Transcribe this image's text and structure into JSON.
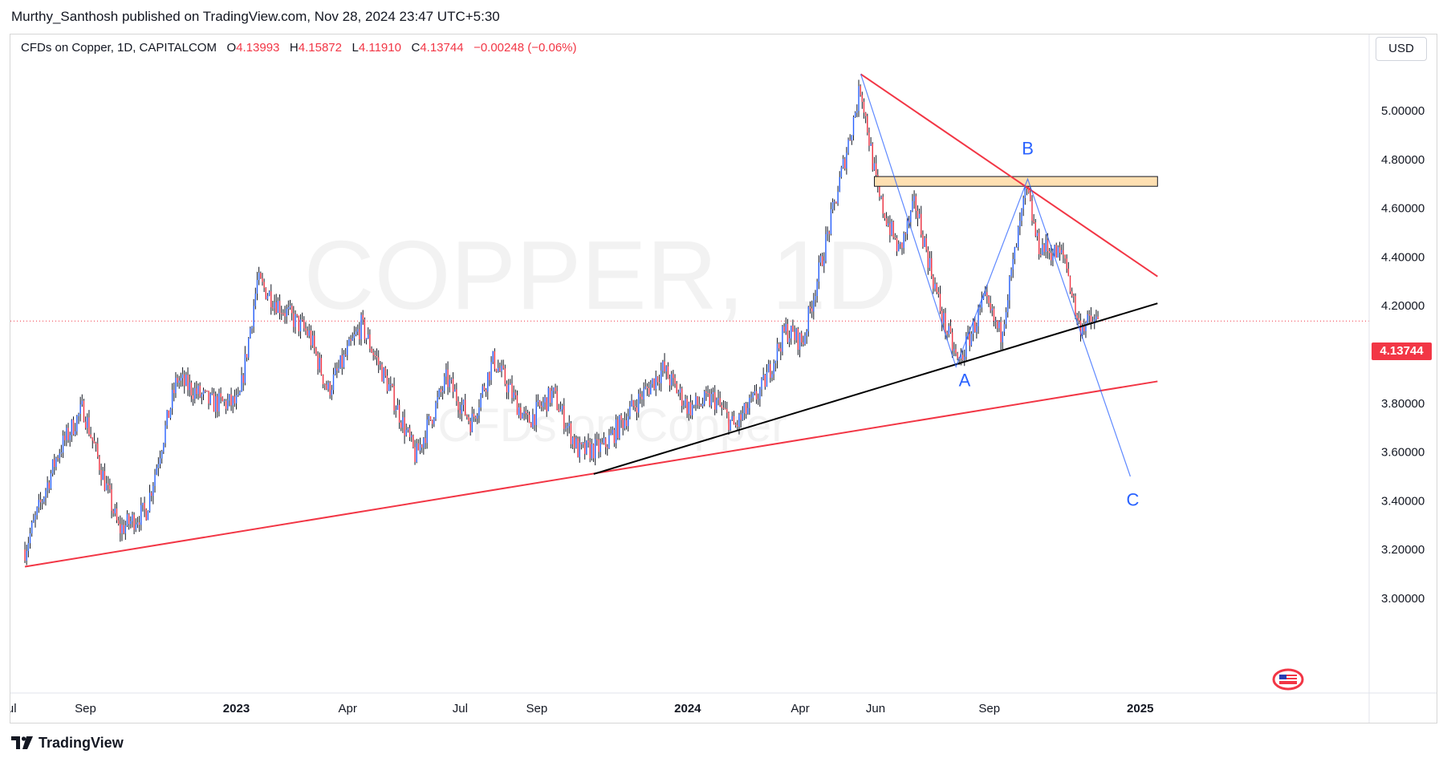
{
  "header": {
    "publish_line": "Murthy_Santhosh published on TradingView.com, Nov 28, 2024 23:47 UTC+5:30"
  },
  "legend": {
    "symbol": "CFDs on Copper, 1D, CAPITALCOM",
    "o_label": "O",
    "o_value": "4.13993",
    "h_label": "H",
    "h_value": "4.15872",
    "l_label": "L",
    "l_value": "4.11910",
    "c_label": "C",
    "c_value": "4.13744",
    "change": "−0.00248 (−0.06%)"
  },
  "currency": "USD",
  "last_price": "4.13744",
  "watermark": {
    "main": "COPPER, 1D",
    "sub": "CFDs on Copper"
  },
  "footer": {
    "brand": "TradingView"
  },
  "colors": {
    "up": "#2962ff",
    "down": "#f23645",
    "wick": "#131722",
    "wave": "#2962ff",
    "resistance": "#f23645",
    "support": "#000000",
    "zone": "#ffe0b2"
  },
  "chart_data": {
    "type": "candlestick",
    "timeframe": "1D",
    "x_tick_labels": [
      "Jul",
      "Sep",
      "2023",
      "Apr",
      "Jul",
      "Sep",
      "2024",
      "Apr",
      "Jun",
      "Sep",
      "2025"
    ],
    "y_tick_labels": [
      "5.00000",
      "4.80000",
      "4.60000",
      "4.40000",
      "4.20000",
      "4.00000",
      "3.80000",
      "3.60000",
      "3.40000",
      "3.20000",
      "3.00000"
    ],
    "ylim": [
      2.92,
      5.25
    ],
    "grid": false,
    "last_value": 4.13744,
    "anchors": [
      {
        "date": "2022-07-14",
        "value": 3.2
      },
      {
        "date": "2022-08-10",
        "value": 3.6
      },
      {
        "date": "2022-08-30",
        "value": 3.78
      },
      {
        "date": "2022-09-28",
        "value": 3.28
      },
      {
        "date": "2022-10-20",
        "value": 3.36
      },
      {
        "date": "2022-11-14",
        "value": 3.9
      },
      {
        "date": "2022-12-12",
        "value": 3.8
      },
      {
        "date": "2023-01-03",
        "value": 3.8
      },
      {
        "date": "2023-01-18",
        "value": 4.3
      },
      {
        "date": "2023-02-05",
        "value": 4.2
      },
      {
        "date": "2023-03-01",
        "value": 4.08
      },
      {
        "date": "2023-03-16",
        "value": 3.85
      },
      {
        "date": "2023-04-12",
        "value": 4.12
      },
      {
        "date": "2023-05-05",
        "value": 3.86
      },
      {
        "date": "2023-05-26",
        "value": 3.58
      },
      {
        "date": "2023-06-20",
        "value": 3.9
      },
      {
        "date": "2023-07-10",
        "value": 3.72
      },
      {
        "date": "2023-07-28",
        "value": 3.98
      },
      {
        "date": "2023-08-24",
        "value": 3.72
      },
      {
        "date": "2023-09-14",
        "value": 3.84
      },
      {
        "date": "2023-10-05",
        "value": 3.6
      },
      {
        "date": "2023-10-25",
        "value": 3.62
      },
      {
        "date": "2023-11-20",
        "value": 3.8
      },
      {
        "date": "2023-12-12",
        "value": 3.94
      },
      {
        "date": "2024-01-02",
        "value": 3.78
      },
      {
        "date": "2024-01-22",
        "value": 3.82
      },
      {
        "date": "2024-02-08",
        "value": 3.7
      },
      {
        "date": "2024-03-01",
        "value": 3.86
      },
      {
        "date": "2024-03-20",
        "value": 4.1
      },
      {
        "date": "2024-04-03",
        "value": 4.05
      },
      {
        "date": "2024-04-29",
        "value": 4.62
      },
      {
        "date": "2024-05-20",
        "value": 5.1
      },
      {
        "date": "2024-06-03",
        "value": 4.65
      },
      {
        "date": "2024-06-20",
        "value": 4.42
      },
      {
        "date": "2024-07-03",
        "value": 4.62
      },
      {
        "date": "2024-07-25",
        "value": 4.15
      },
      {
        "date": "2024-08-07",
        "value": 3.96
      },
      {
        "date": "2024-08-28",
        "value": 4.22
      },
      {
        "date": "2024-09-10",
        "value": 4.08
      },
      {
        "date": "2024-10-01",
        "value": 4.68
      },
      {
        "date": "2024-10-10",
        "value": 4.45
      },
      {
        "date": "2024-10-22",
        "value": 4.42
      },
      {
        "date": "2024-11-01",
        "value": 4.4
      },
      {
        "date": "2024-11-12",
        "value": 4.12
      },
      {
        "date": "2024-11-28",
        "value": 4.137
      }
    ],
    "annotations": {
      "labels": [
        {
          "text": "A",
          "date": "2024-08-12",
          "value": 3.87
        },
        {
          "text": "B",
          "date": "2024-10-02",
          "value": 4.82
        },
        {
          "text": "C",
          "date": "2024-12-26",
          "value": 3.38
        }
      ],
      "wave_line": [
        {
          "date": "2024-05-20",
          "value": 5.15
        },
        {
          "date": "2024-08-05",
          "value": 3.95
        },
        {
          "date": "2024-10-02",
          "value": 4.72
        },
        {
          "date": "2024-12-24",
          "value": 3.5
        }
      ],
      "resistance_line": [
        {
          "date": "2024-05-20",
          "value": 5.15
        },
        {
          "date": "2025-01-15",
          "value": 4.32
        }
      ],
      "support_line": [
        {
          "date": "2023-10-17",
          "value": 3.51
        },
        {
          "date": "2025-01-15",
          "value": 4.21
        }
      ],
      "long_trend_line": [
        {
          "date": "2022-07-14",
          "value": 3.13
        },
        {
          "date": "2025-01-15",
          "value": 3.89
        }
      ],
      "zone": {
        "from_date": "2024-05-31",
        "to_date": "2025-01-15",
        "top": 4.73,
        "bottom": 4.69
      }
    }
  }
}
